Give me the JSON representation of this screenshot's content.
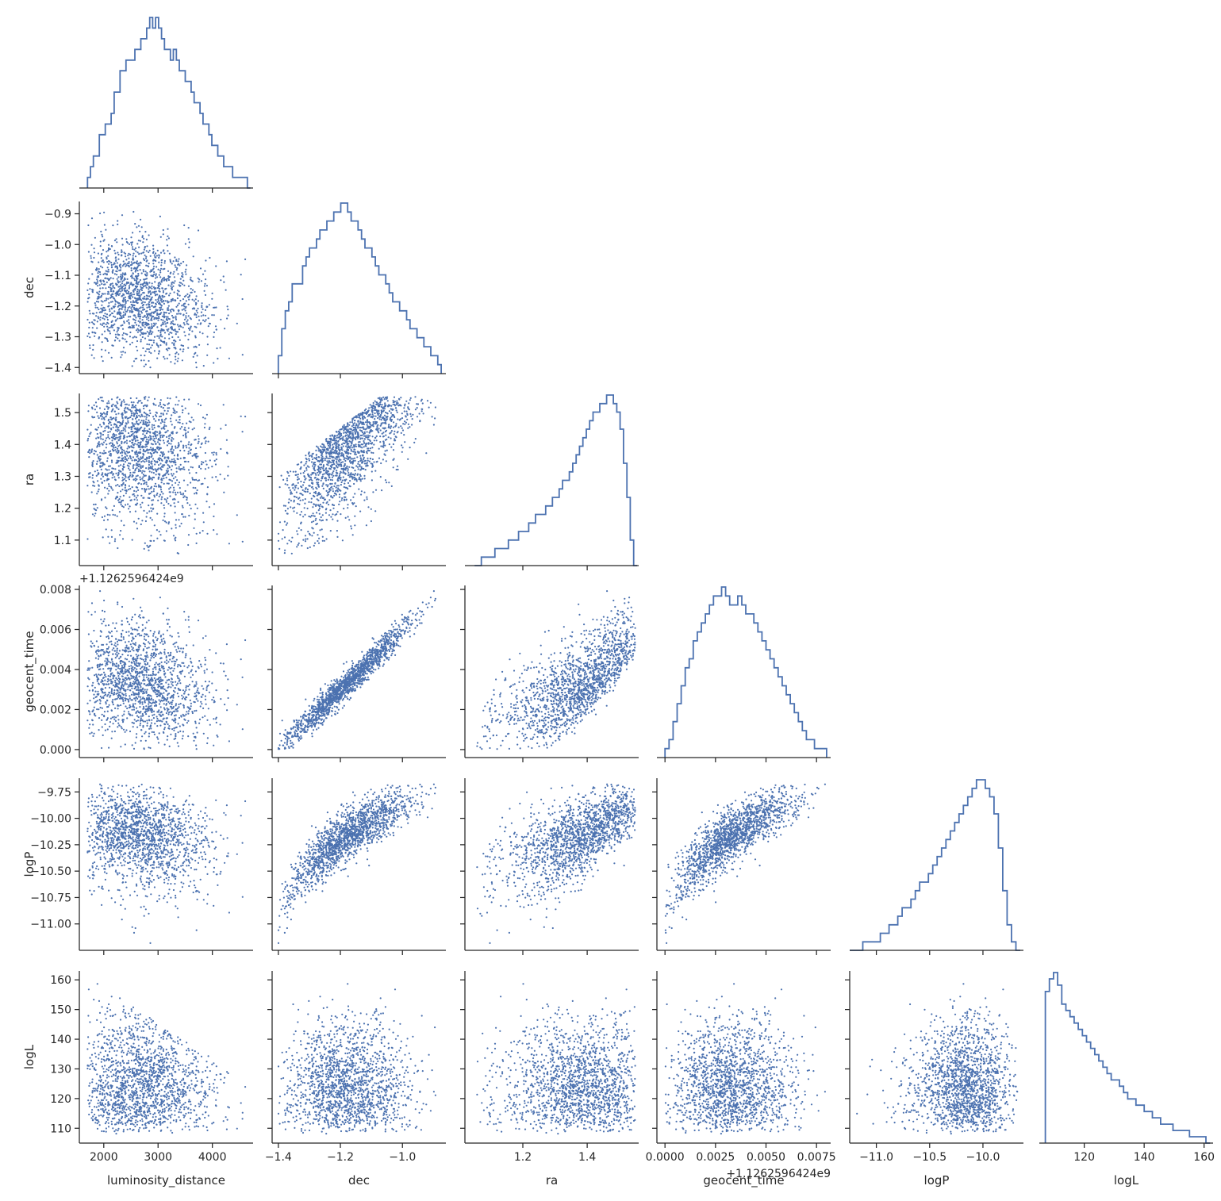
{
  "chart_data": {
    "type": "scatter",
    "layout": "corner (pair) plot, lower triangle scatter, diagonal step histograms",
    "grid": false,
    "legend": "none",
    "marker_color": "#4c72b0",
    "variables": [
      {
        "name": "luminosity_distance",
        "label": "luminosity_distance",
        "range": [
          1550,
          4750
        ],
        "ticks": [
          2000,
          3000,
          4000
        ],
        "tick_labels": [
          "2000",
          "3000",
          "4000"
        ],
        "offset_label": ""
      },
      {
        "name": "dec",
        "label": "dec",
        "range": [
          -1.42,
          -0.86
        ],
        "ticks": [
          -1.4,
          -1.3,
          -1.2,
          -1.1,
          -1.0,
          -0.9
        ],
        "tick_labels": [
          "−1.4",
          "−1.3",
          "−1.2",
          "−1.1",
          "−1.0",
          "−0.9"
        ],
        "x_ticks": [
          -1.4,
          -1.2,
          -1.0
        ],
        "x_tick_labels": [
          "−1.4",
          "−1.2",
          "−1.0"
        ],
        "offset_label": ""
      },
      {
        "name": "ra",
        "label": "ra",
        "range": [
          1.02,
          1.56
        ],
        "ticks": [
          1.1,
          1.2,
          1.3,
          1.4,
          1.5
        ],
        "tick_labels": [
          "1.1",
          "1.2",
          "1.3",
          "1.4",
          "1.5"
        ],
        "x_ticks": [
          1.2,
          1.4
        ],
        "x_tick_labels": [
          "1.2",
          "1.4"
        ],
        "offset_label": ""
      },
      {
        "name": "geocent_time",
        "label": "geocent_time",
        "range": [
          -0.0004,
          0.0082
        ],
        "ticks": [
          0.0,
          0.002,
          0.004,
          0.006,
          0.008
        ],
        "tick_labels": [
          "0.000",
          "0.002",
          "0.004",
          "0.006",
          "0.008"
        ],
        "x_ticks": [
          0.0,
          0.0025,
          0.005,
          0.0075
        ],
        "x_tick_labels": [
          "0.0000",
          "0.0025",
          "0.0050",
          "0.0075"
        ],
        "offset_label": "+1.1262596424e9"
      },
      {
        "name": "logP",
        "label": "logP",
        "range": [
          -11.25,
          -9.62
        ],
        "ticks": [
          -11.0,
          -10.75,
          -10.5,
          -10.25,
          -10.0,
          -9.75
        ],
        "tick_labels": [
          "−11.00",
          "−10.75",
          "−10.50",
          "−10.25",
          "−10.00",
          "−9.75"
        ],
        "x_ticks": [
          -11.0,
          -10.5,
          -10.0
        ],
        "x_tick_labels": [
          "−11.0",
          "−10.5",
          "−10.0"
        ],
        "offset_label": ""
      },
      {
        "name": "logL",
        "label": "logL",
        "range": [
          105,
          163
        ],
        "ticks": [
          110,
          120,
          130,
          140,
          150,
          160
        ],
        "tick_labels": [
          "110",
          "120",
          "130",
          "140",
          "150",
          "160"
        ],
        "x_ticks": [
          120,
          140,
          160
        ],
        "x_tick_labels": [
          "120",
          "140",
          "160"
        ],
        "offset_label": ""
      }
    ],
    "marginals": {
      "luminosity_distance": {
        "bin_start": 1700,
        "bin_end": 4700,
        "counts": [
          1,
          2,
          3,
          3,
          5,
          5,
          6,
          6,
          7,
          9,
          9,
          11,
          11,
          12,
          12,
          12,
          13,
          13,
          14,
          14,
          15,
          16,
          15,
          16,
          15,
          14,
          13,
          13,
          12,
          13,
          12,
          11,
          11,
          10,
          10,
          9,
          8,
          8,
          7,
          6,
          6,
          5,
          4,
          4,
          3,
          3,
          2,
          2,
          2,
          1,
          1,
          1,
          1,
          1,
          0
        ]
      },
      "dec": {
        "bin_start": -1.4,
        "bin_end": -0.875,
        "counts": [
          2,
          5,
          7,
          8,
          10,
          10,
          10,
          12,
          13,
          14,
          14,
          15,
          16,
          16,
          17,
          17,
          18,
          18,
          19,
          19,
          18,
          17,
          17,
          16,
          15,
          14,
          14,
          13,
          12,
          11,
          11,
          10,
          9,
          8,
          8,
          7,
          7,
          6,
          5,
          5,
          4,
          4,
          3,
          3,
          2,
          2,
          1
        ]
      },
      "ra": {
        "bin_start": 1.05,
        "bin_end": 1.555,
        "counts": [
          0,
          0,
          1,
          1,
          1,
          1,
          2,
          2,
          2,
          2,
          3,
          3,
          3,
          4,
          4,
          4,
          5,
          5,
          6,
          6,
          6,
          7,
          7,
          8,
          8,
          9,
          10,
          10,
          11,
          12,
          13,
          14,
          15,
          16,
          17,
          18,
          18,
          19,
          19,
          20,
          20,
          19,
          18,
          16,
          12,
          8,
          3,
          0
        ]
      },
      "geocent_time": {
        "bin_start": 0.0,
        "bin_end": 0.008,
        "counts": [
          1,
          2,
          4,
          6,
          8,
          10,
          11,
          13,
          14,
          15,
          16,
          17,
          18,
          18,
          19,
          18,
          17,
          17,
          18,
          17,
          16,
          16,
          15,
          14,
          13,
          12,
          11,
          10,
          9,
          8,
          7,
          6,
          5,
          4,
          3,
          2,
          2,
          1,
          1,
          1
        ]
      },
      "logP": {
        "bin_start": -11.25,
        "bin_end": -9.65,
        "counts": [
          0,
          0,
          0,
          1,
          1,
          1,
          1,
          2,
          2,
          3,
          3,
          4,
          5,
          5,
          6,
          7,
          8,
          8,
          9,
          10,
          11,
          12,
          13,
          14,
          15,
          16,
          17,
          18,
          19,
          20,
          20,
          19,
          18,
          16,
          12,
          7,
          3,
          1,
          0
        ]
      },
      "logL": {
        "bin_start": 107,
        "bin_end": 162,
        "counts": [
          24,
          26,
          27,
          25,
          22,
          21,
          20,
          19,
          18,
          17,
          16,
          15,
          14,
          13,
          12,
          11,
          10,
          10,
          9,
          8,
          7,
          7,
          6,
          6,
          5,
          5,
          4,
          4,
          3,
          3,
          3,
          2,
          2,
          2,
          2,
          1,
          1,
          1,
          1,
          0
        ]
      }
    }
  }
}
